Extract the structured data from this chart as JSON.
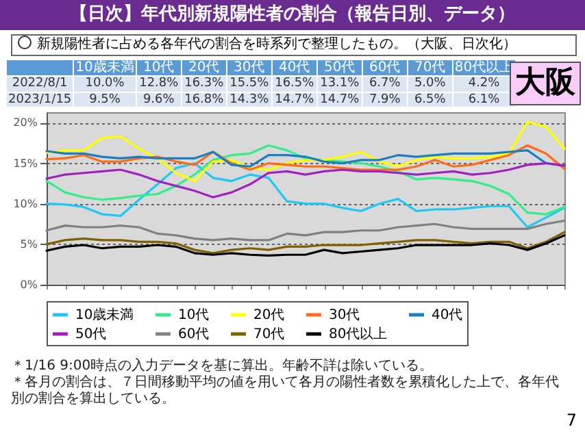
{
  "chart_data": {
    "type": "line",
    "title": "【日次】年代別新規陽性者の割合（報告日別、データ）",
    "subtitle": "新規陽性者に占める各年代の割合を時系列で整理したもの。（大阪、日次化）",
    "annotations": [
      "大阪",
      "2022/8/1",
      "10.0%",
      "12.8%",
      "16.3%",
      "15.5%",
      "16.5%",
      "13.1%",
      "6.7%",
      "5.0%",
      "4.2%",
      "2023/1/15",
      "9.5%",
      "9.6%",
      "16.8%",
      "14.3%",
      "14.7%",
      "14.7%",
      "7.9%",
      "6.5%",
      "6.1%",
      "＊1/16 9:00時点の入力データを基に算出。年齢不詳は除いている。",
      "＊各月の割合は、７日間移動平均の値を用いて各月の陽性者数を累積化した上で、各年代別の割合を算出している。",
      "7"
    ],
    "categories": [
      null,
      null,
      null,
      null,
      null,
      null,
      null,
      null,
      null,
      null,
      null,
      null,
      null,
      null,
      null,
      null,
      null,
      null,
      null,
      null,
      null,
      null,
      null,
      null,
      null,
      null,
      null,
      null,
      null
    ],
    "ylim": [
      0,
      21.3
    ],
    "yticks": [
      {
        "value": 0,
        "label": "0%"
      },
      {
        "value": 5,
        "label": "5%"
      },
      {
        "value": 10,
        "label": "10%"
      },
      {
        "value": 15,
        "label": "15%"
      },
      {
        "value": 20,
        "label": "20%"
      }
    ],
    "grid": "y",
    "legend": "bottom",
    "tick_labels": "y",
    "series": [
      {
        "name": "10歳未満",
        "color": "#1ec8f0",
        "values": [
          10.0,
          9.9,
          9.6,
          8.7,
          8.5,
          10.5,
          12.4,
          14.4,
          15.0,
          13.2,
          12.8,
          13.6,
          13.2,
          10.3,
          10.0,
          10.0,
          9.5,
          9.1,
          10.0,
          10.6,
          9.1,
          9.3,
          9.3,
          9.5,
          9.7,
          9.7,
          7.1,
          8.3,
          9.5
        ]
      },
      {
        "name": "10代",
        "color": "#33ee88",
        "values": [
          12.8,
          11.4,
          10.8,
          10.5,
          10.7,
          11.0,
          11.2,
          12.2,
          13.6,
          15.4,
          16.0,
          16.2,
          17.2,
          16.6,
          15.6,
          15.4,
          15.2,
          15.0,
          14.6,
          14.0,
          13.0,
          13.2,
          13.0,
          12.8,
          12.2,
          11.2,
          8.9,
          8.7,
          9.6
        ]
      },
      {
        "name": "20代",
        "color": "#ffff00",
        "values": [
          16.3,
          16.6,
          16.6,
          18.1,
          18.3,
          16.8,
          15.6,
          13.8,
          12.8,
          15.2,
          15.4,
          14.4,
          14.2,
          15.0,
          15.4,
          15.4,
          15.8,
          16.4,
          15.2,
          14.6,
          15.4,
          15.8,
          15.6,
          15.6,
          15.8,
          16.2,
          20.1,
          19.5,
          16.8
        ]
      },
      {
        "name": "30代",
        "color": "#ff6a1a",
        "values": [
          15.5,
          15.6,
          16.0,
          15.2,
          15.2,
          15.6,
          15.8,
          15.2,
          14.8,
          16.4,
          15.0,
          14.2,
          15.0,
          14.8,
          14.6,
          14.6,
          14.4,
          14.2,
          14.2,
          14.2,
          14.6,
          15.4,
          14.6,
          14.8,
          15.4,
          16.0,
          17.2,
          16.2,
          14.3
        ]
      },
      {
        "name": "40代",
        "color": "#1a7fc0",
        "values": [
          16.5,
          16.2,
          16.2,
          15.8,
          15.6,
          15.8,
          15.6,
          15.6,
          15.6,
          16.4,
          14.8,
          14.6,
          16.0,
          16.0,
          15.8,
          15.2,
          15.0,
          15.4,
          15.4,
          16.0,
          15.8,
          16.0,
          16.2,
          16.2,
          16.2,
          16.4,
          16.6,
          15.0,
          14.7
        ]
      },
      {
        "name": "50代",
        "color": "#a020c0",
        "values": [
          13.1,
          13.6,
          13.8,
          14.0,
          14.2,
          13.6,
          12.8,
          12.2,
          11.6,
          10.8,
          11.4,
          12.4,
          13.8,
          14.0,
          13.6,
          14.0,
          14.2,
          14.0,
          14.0,
          13.8,
          13.6,
          13.8,
          14.0,
          13.6,
          13.8,
          14.2,
          14.8,
          15.0,
          14.7
        ]
      },
      {
        "name": "60代",
        "color": "#808080",
        "values": [
          6.7,
          7.3,
          7.1,
          7.1,
          7.3,
          7.1,
          6.3,
          6.1,
          5.7,
          5.5,
          5.7,
          5.5,
          5.5,
          6.3,
          6.1,
          6.5,
          6.5,
          6.7,
          6.7,
          7.1,
          7.3,
          7.5,
          7.1,
          6.9,
          6.9,
          6.9,
          6.9,
          7.5,
          7.9
        ]
      },
      {
        "name": "70代",
        "color": "#806000",
        "values": [
          5.0,
          5.5,
          5.7,
          5.5,
          5.5,
          5.3,
          5.3,
          5.1,
          4.3,
          3.9,
          4.3,
          4.5,
          4.3,
          4.7,
          4.7,
          4.9,
          4.9,
          4.9,
          5.1,
          5.3,
          5.5,
          5.5,
          5.3,
          5.1,
          5.3,
          5.3,
          4.5,
          5.3,
          6.5
        ]
      },
      {
        "name": "80代以上",
        "color": "#000000",
        "values": [
          4.2,
          4.7,
          4.9,
          4.5,
          4.7,
          4.7,
          4.9,
          4.7,
          3.9,
          3.7,
          3.9,
          3.7,
          3.6,
          3.7,
          3.7,
          4.3,
          3.9,
          4.1,
          4.3,
          4.5,
          4.9,
          4.9,
          4.9,
          4.9,
          5.1,
          4.9,
          4.3,
          5.1,
          6.1
        ]
      }
    ]
  }
}
